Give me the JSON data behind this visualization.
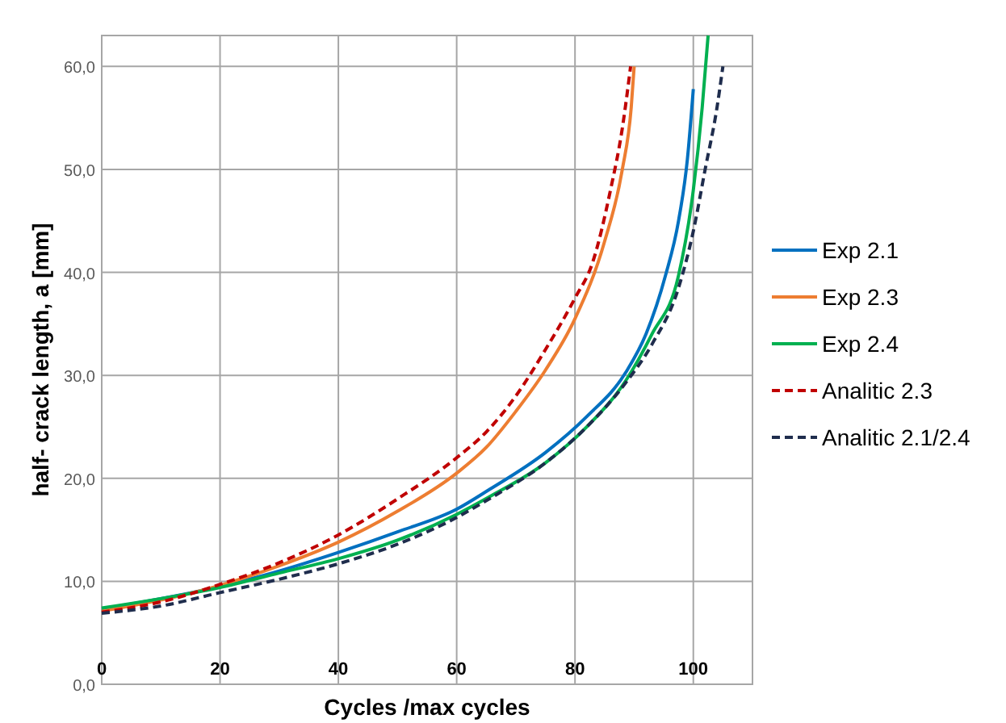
{
  "chart_data": {
    "type": "line",
    "xlabel": "Cycles /max cycles",
    "ylabel": "half- crack length, a [mm]",
    "xlim": [
      0,
      110
    ],
    "ylim": [
      0,
      63
    ],
    "xticks": [
      0,
      20,
      40,
      60,
      80,
      100
    ],
    "yticks": [
      {
        "value": 0,
        "label": "0,0"
      },
      {
        "value": 10,
        "label": "10,0"
      },
      {
        "value": 20,
        "label": "20,0"
      },
      {
        "value": 30,
        "label": "30,0"
      },
      {
        "value": 40,
        "label": "40,0"
      },
      {
        "value": 50,
        "label": "50,0"
      },
      {
        "value": 60,
        "label": "60,0"
      }
    ],
    "grid": true,
    "legend": "right",
    "series": [
      {
        "name": "Exp 2.1",
        "color": "#0070c0",
        "line_style": "solid",
        "x": [
          0,
          20,
          30,
          40,
          50,
          60,
          65.5,
          75,
          82,
          88.6,
          92,
          95.3,
          97.5,
          99,
          100
        ],
        "values": [
          7.3,
          9.5,
          11,
          12.8,
          14.8,
          17,
          18.9,
          22.5,
          26,
          30.3,
          34,
          39.7,
          45,
          51,
          57.8
        ]
      },
      {
        "name": "Exp 2.3",
        "color": "#ed7d31",
        "line_style": "solid",
        "x": [
          0,
          20,
          30,
          40,
          50,
          60,
          65,
          70,
          75,
          80,
          85,
          88,
          89.5,
          90
        ],
        "values": [
          7.1,
          9.6,
          11.5,
          13.8,
          16.8,
          20.5,
          23,
          26.5,
          30.5,
          35.5,
          43,
          50,
          56,
          60
        ]
      },
      {
        "name": "Exp 2.4",
        "color": "#00b050",
        "line_style": "solid",
        "x": [
          0,
          20,
          30,
          40,
          50,
          60,
          65.5,
          75,
          82,
          88.6,
          93,
          97.5,
          100,
          101.5,
          102.5
        ],
        "values": [
          7.4,
          9.4,
          10.8,
          12.2,
          14,
          16.5,
          18.2,
          21.5,
          25,
          29.5,
          34,
          39.7,
          48,
          56,
          63
        ]
      },
      {
        "name": "Analitic 2.3",
        "color": "#c00000",
        "line_style": "dashed",
        "x": [
          0,
          10,
          20,
          30,
          40,
          50,
          60,
          65,
          70,
          75,
          80,
          83,
          86,
          88,
          89.4
        ],
        "values": [
          7,
          8,
          9.7,
          11.8,
          14.5,
          18,
          22,
          24.5,
          28,
          32.5,
          37.5,
          41,
          48,
          54,
          60
        ]
      },
      {
        "name": "Analitic 2.1/2.4",
        "color": "#1f2d4d",
        "line_style": "dashed",
        "x": [
          0,
          10,
          20,
          30,
          40,
          50,
          60,
          65.5,
          75,
          82,
          88.6,
          93,
          97.5,
          100,
          102,
          104,
          105
        ],
        "values": [
          6.9,
          7.6,
          8.9,
          10.2,
          11.7,
          13.6,
          16.2,
          18,
          21.5,
          25,
          29.3,
          33,
          38.5,
          44,
          50,
          56,
          60
        ]
      }
    ]
  }
}
